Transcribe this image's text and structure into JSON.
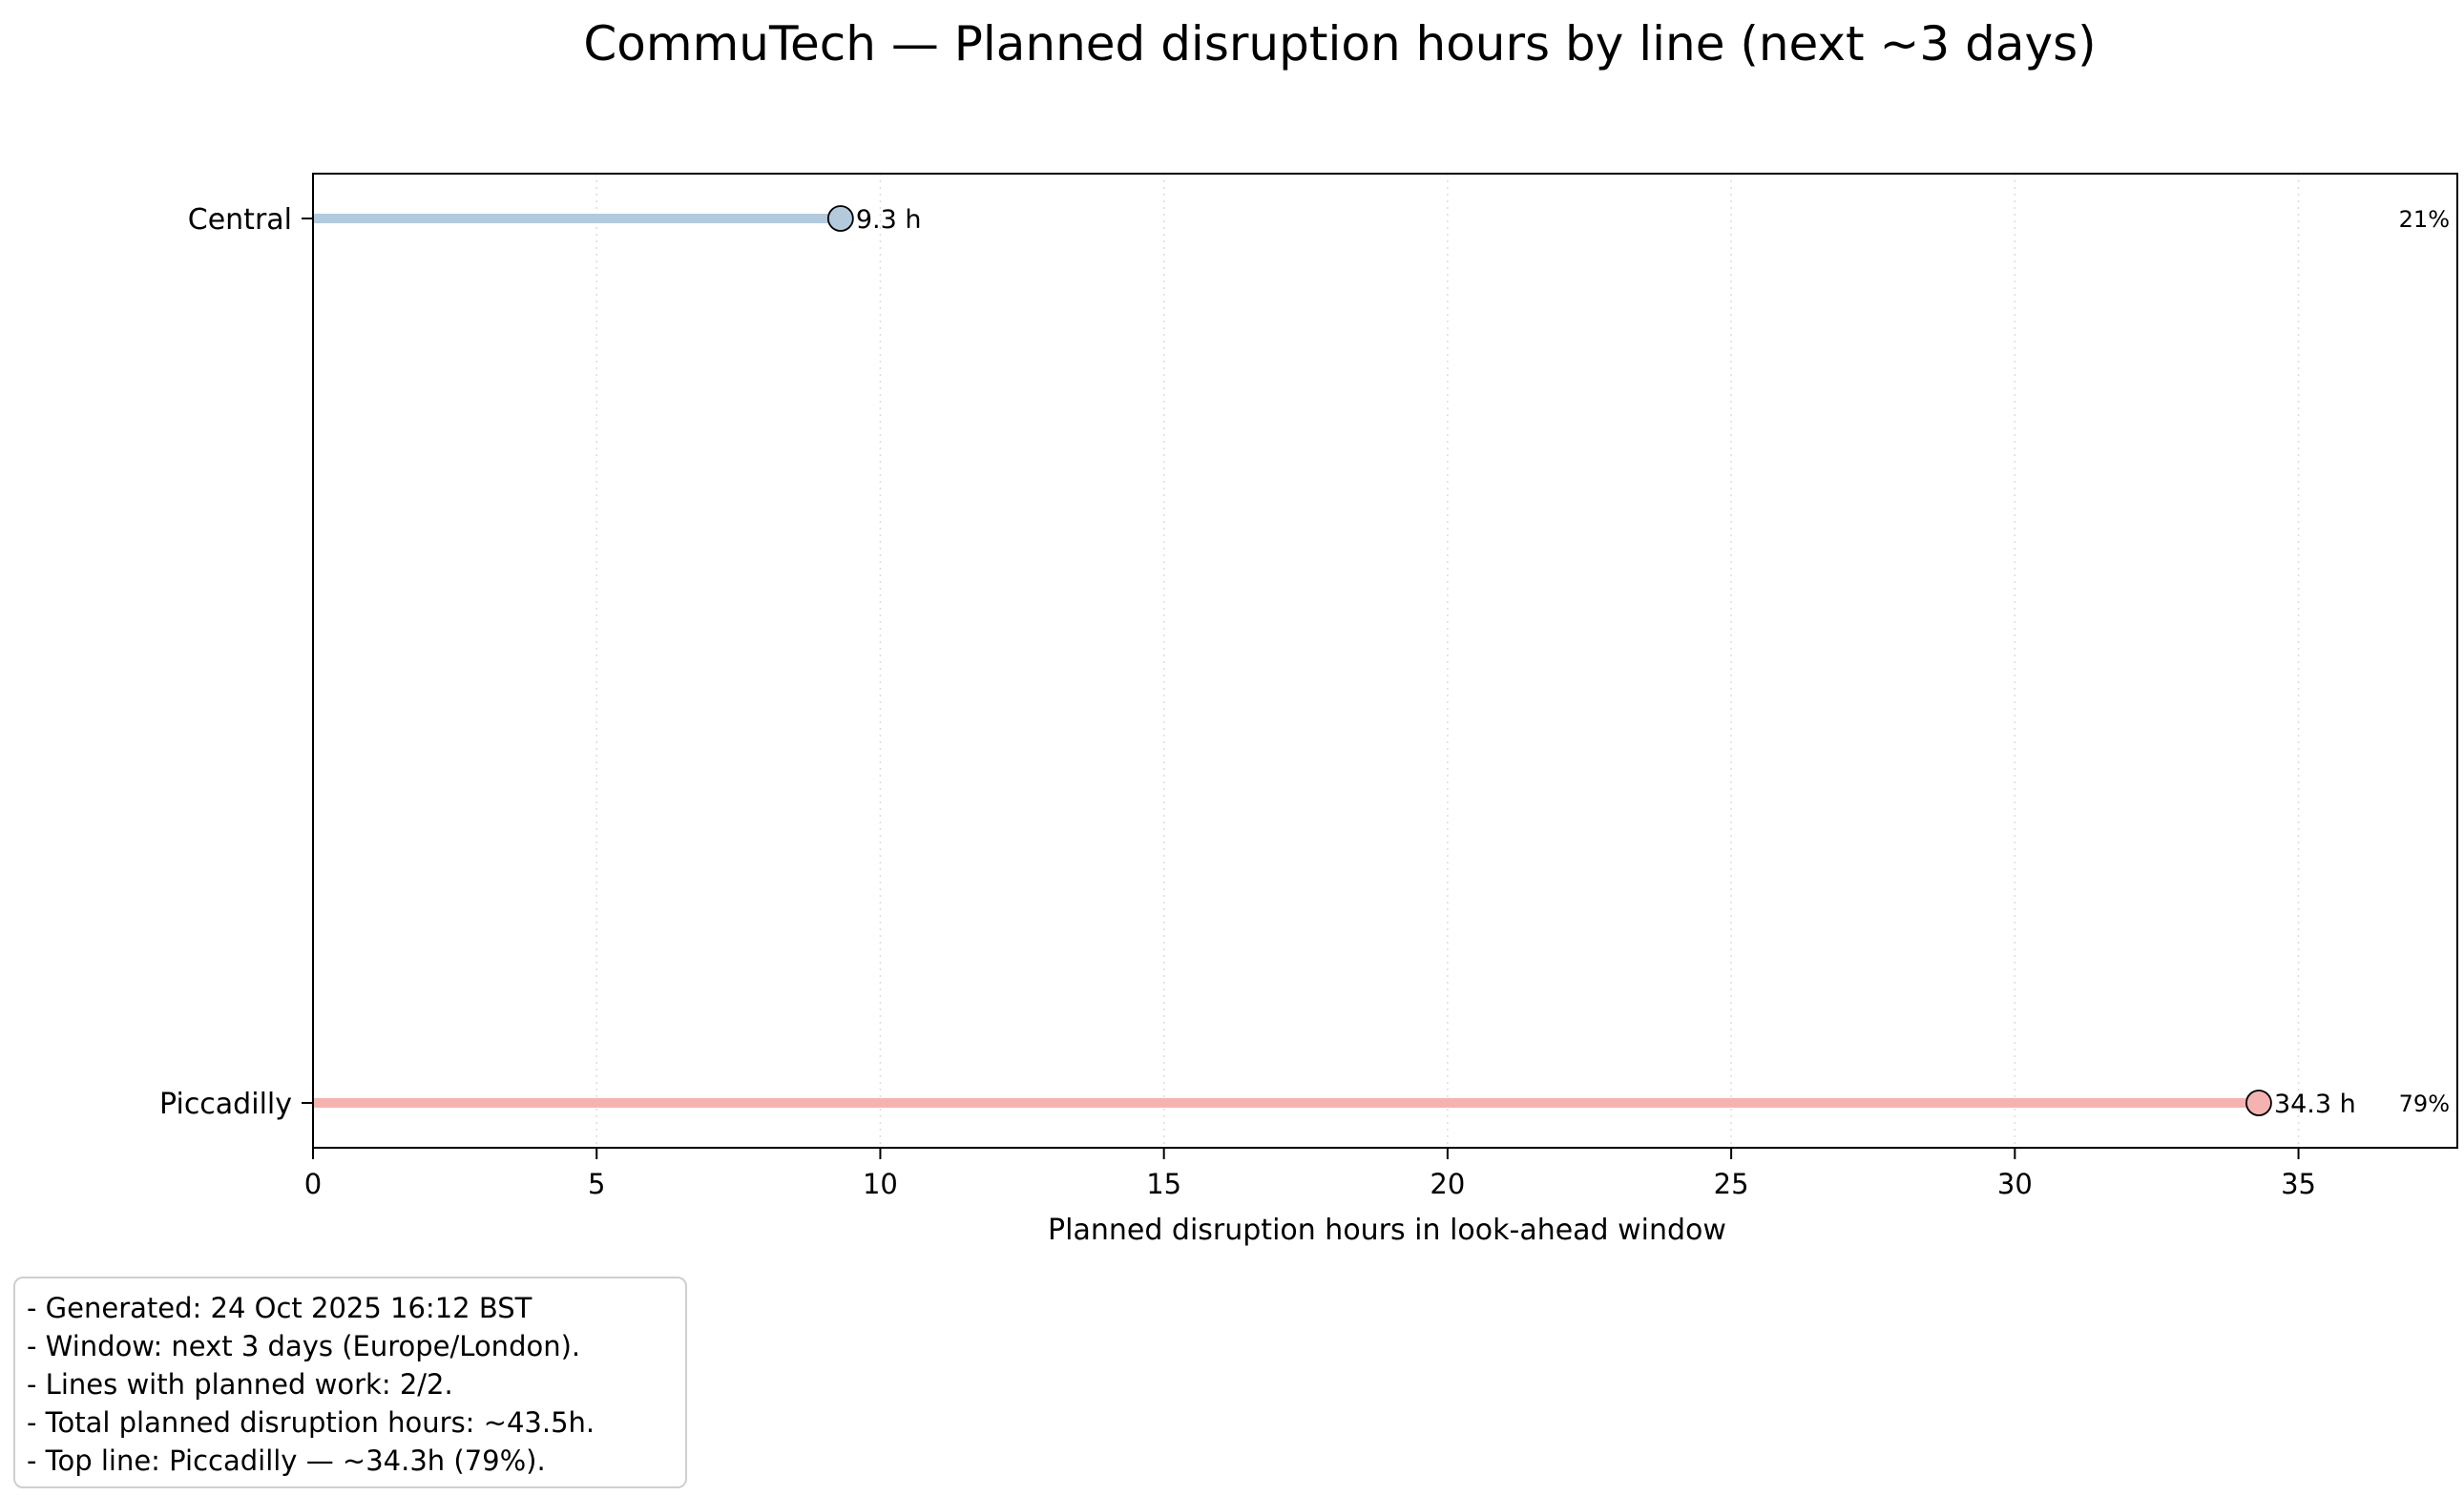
{
  "chart_data": {
    "type": "lollipop",
    "orientation": "horizontal",
    "title": "CommuTech — Planned disruption hours by line (next ~3 days)",
    "xlabel": "Planned disruption hours in look-ahead window",
    "ylabel": "",
    "xlim": [
      0,
      37.8
    ],
    "xticks": [
      0,
      5,
      10,
      15,
      20,
      25,
      30,
      35
    ],
    "grid": "x-dotted",
    "categories": [
      "Central",
      "Piccadilly"
    ],
    "values": [
      9.3,
      34.3
    ],
    "value_labels": [
      "9.3 h",
      "34.3 h"
    ],
    "share_labels": [
      "21%",
      "79%"
    ],
    "colors": [
      "#b3c9dc",
      "#f4b3b0"
    ]
  },
  "notes": [
    "- Generated: 24 Oct 2025 16:12 BST",
    "- Window: next 3 days (Europe/London).",
    "- Lines with planned work: 2/2.",
    "- Total planned disruption hours: ~43.5h.",
    "- Top line: Piccadilly — ~34.3h (79%)."
  ]
}
